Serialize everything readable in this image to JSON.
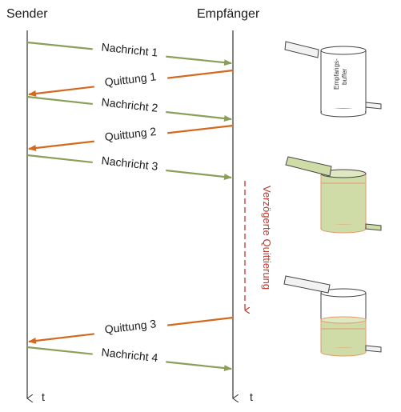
{
  "headers": {
    "sender": "Sender",
    "receiver": "Empfänger"
  },
  "time_label": "t",
  "messages": [
    {
      "text": "Nachricht 1",
      "direction": "to-receiver",
      "color": "#8aa05a"
    },
    {
      "text": "Quittung 1",
      "direction": "to-sender",
      "color": "#d2691e"
    },
    {
      "text": "Nachricht 2",
      "direction": "to-receiver",
      "color": "#8aa05a"
    },
    {
      "text": "Quittung 2",
      "direction": "to-sender",
      "color": "#d2691e"
    },
    {
      "text": "Nachricht 3",
      "direction": "to-receiver",
      "color": "#8aa05a"
    },
    {
      "text": "Quittung 3",
      "direction": "to-sender",
      "color": "#d2691e"
    },
    {
      "text": "Nachricht 4",
      "direction": "to-receiver",
      "color": "#8aa05a"
    }
  ],
  "delayed_ack_label": "Verzögerte Quittierung",
  "delayed_ack_color": "#c0392b",
  "buffer_label_line1": "Empfangs-",
  "buffer_label_line2": "buffer",
  "buffers": [
    {
      "state": "empty",
      "fill_level": 0.0
    },
    {
      "state": "full",
      "fill_level": 1.0
    },
    {
      "state": "partial",
      "fill_level": 0.45
    }
  ]
}
